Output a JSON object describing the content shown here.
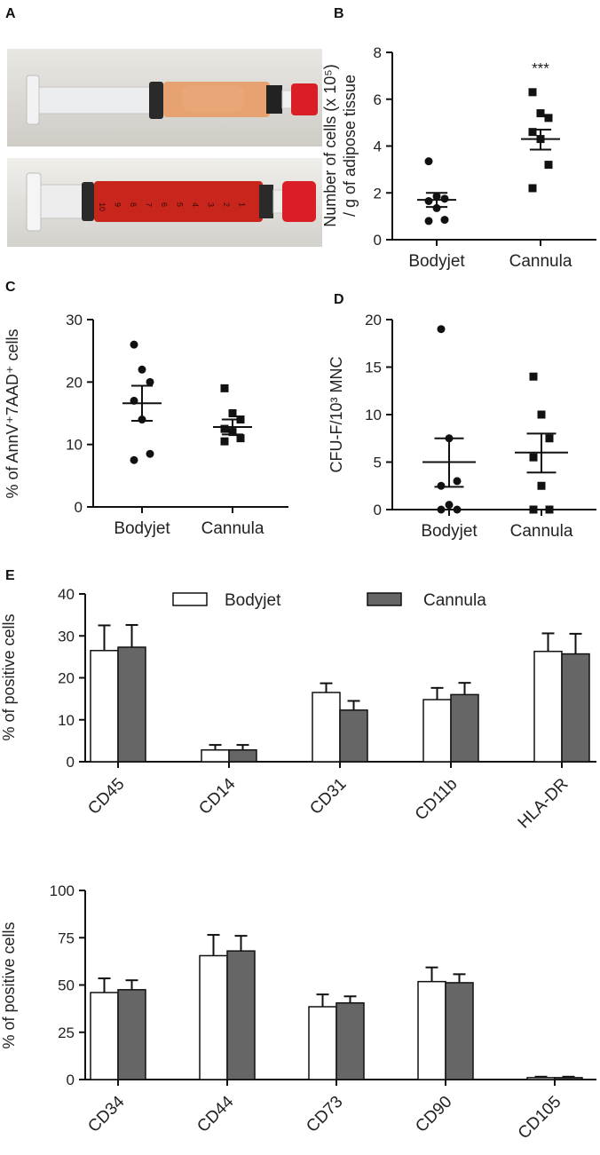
{
  "panel_labels": [
    "A",
    "B",
    "C",
    "D",
    "E"
  ],
  "colors": {
    "axis": "#111111",
    "bodyjet_fill": "#ffffff",
    "cannula_fill": "#666666",
    "syringe_orange": "#e7a271",
    "syringe_red": "#c8261c",
    "cap_red": "#d91e26"
  },
  "photos": [
    {
      "name": "syringe-orange-photo",
      "content": "lipoaspirate syringe (orange)"
    },
    {
      "name": "syringe-red-photo",
      "content": "lipoaspirate syringe (red)",
      "scale_marks": [
        "10",
        "9",
        "8",
        "7",
        "6",
        "5",
        "4",
        "3",
        "2",
        "1"
      ]
    }
  ],
  "chart_data": [
    {
      "panel": "B",
      "type": "scatter",
      "ylabel_line1": "Number of cells (x 10⁵)",
      "ylabel_line2": "/ g of adipose tissue",
      "categories": [
        "Bodyjet",
        "Cannula"
      ],
      "ylim": [
        0,
        8
      ],
      "yticks": [
        "0",
        "2",
        "4",
        "6",
        "8"
      ],
      "annotation": "***",
      "series": [
        {
          "name": "Bodyjet",
          "marker": "circle",
          "points": [
            3.35,
            1.85,
            1.75,
            1.65,
            1.35,
            0.85,
            0.8
          ],
          "mean": 1.7,
          "sem_upper": 2.0,
          "sem_lower": 1.4
        },
        {
          "name": "Cannula",
          "marker": "square",
          "points": [
            6.3,
            5.4,
            5.2,
            4.6,
            4.3,
            3.2,
            2.2
          ],
          "mean": 4.3,
          "sem_upper": 4.7,
          "sem_lower": 3.85
        }
      ]
    },
    {
      "panel": "C",
      "type": "scatter",
      "ylabel": "% of AnnV⁺7AAD⁺ cells",
      "categories": [
        "Bodyjet",
        "Cannula"
      ],
      "ylim": [
        0,
        30
      ],
      "yticks": [
        "0",
        "10",
        "20",
        "30"
      ],
      "series": [
        {
          "name": "Bodyjet",
          "marker": "circle",
          "points": [
            26,
            22,
            20,
            17,
            14,
            8.5,
            7.5
          ],
          "mean": 16.6,
          "sem_upper": 19.4,
          "sem_lower": 13.8
        },
        {
          "name": "Cannula",
          "marker": "square",
          "points": [
            19,
            15,
            14,
            12.5,
            12,
            11,
            10.5
          ],
          "mean": 12.8,
          "sem_upper": 14.0,
          "sem_lower": 11.6
        }
      ]
    },
    {
      "panel": "D",
      "type": "scatter",
      "ylabel": "CFU-F/10³ MNC",
      "categories": [
        "Bodyjet",
        "Cannula"
      ],
      "ylim": [
        0,
        20
      ],
      "yticks": [
        "0",
        "5",
        "10",
        "15",
        "20"
      ],
      "series": [
        {
          "name": "Bodyjet",
          "marker": "circle",
          "points": [
            19,
            7.5,
            3,
            2.5,
            0.5,
            0,
            0
          ],
          "mean": 5.0,
          "sem_upper": 7.5,
          "sem_lower": 2.4
        },
        {
          "name": "Cannula",
          "marker": "square",
          "points": [
            14,
            10,
            7.5,
            5.5,
            2.5,
            0,
            0
          ],
          "mean": 6.0,
          "sem_upper": 8.0,
          "sem_lower": 3.9
        }
      ]
    },
    {
      "panel": "E-top",
      "type": "bar",
      "ylabel": "% of positive cells",
      "categories": [
        "CD45",
        "CD14",
        "CD31",
        "CD11b",
        "HLA-DR"
      ],
      "ylim": [
        0,
        40
      ],
      "yticks": [
        "0",
        "10",
        "20",
        "30",
        "40"
      ],
      "legend": [
        "Bodyjet",
        "Cannula"
      ],
      "series": [
        {
          "name": "Bodyjet",
          "values": [
            26.5,
            2.8,
            16.5,
            14.8,
            26.3
          ],
          "errors": [
            6.0,
            1.2,
            2.2,
            2.8,
            4.3
          ]
        },
        {
          "name": "Cannula",
          "values": [
            27.3,
            2.8,
            12.3,
            16.0,
            25.7
          ],
          "errors": [
            5.3,
            1.2,
            2.2,
            2.8,
            4.8
          ]
        }
      ]
    },
    {
      "panel": "E-bottom",
      "type": "bar",
      "ylabel": "% of positive cells",
      "categories": [
        "CD34",
        "CD44",
        "CD73",
        "CD90",
        "CD105"
      ],
      "ylim": [
        0,
        100
      ],
      "yticks": [
        "0",
        "25",
        "50",
        "75",
        "100"
      ],
      "series": [
        {
          "name": "Bodyjet",
          "values": [
            46,
            65.5,
            38.5,
            51.8,
            1.0
          ],
          "errors": [
            7.5,
            11.0,
            6.5,
            7.5,
            0.5
          ]
        },
        {
          "name": "Cannula",
          "values": [
            47.5,
            68,
            40.5,
            51.2,
            1.0
          ],
          "errors": [
            5.0,
            8.0,
            3.5,
            4.5,
            0.5
          ]
        }
      ]
    }
  ]
}
